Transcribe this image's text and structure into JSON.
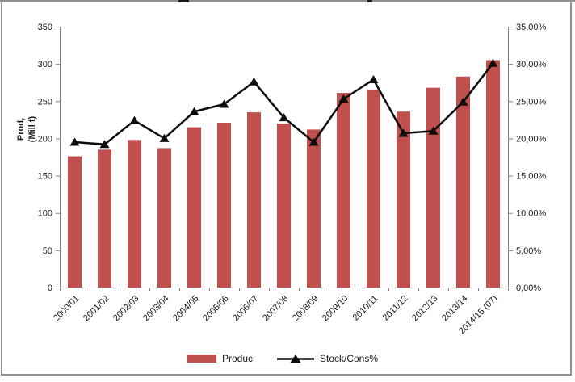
{
  "chart_data": {
    "type": "bar+line combo",
    "categories": [
      "2000/01",
      "2001/02",
      "2002/03",
      "2003/04",
      "2004/05",
      "2005/06",
      "2006/07",
      "2007/08",
      "2008/09",
      "2009/10",
      "2010/11",
      "2011/12",
      "2012/13",
      "2013/14",
      "2014/15 (07)"
    ],
    "series": [
      {
        "name": "Produc",
        "type": "bar",
        "axis": "left",
        "color": "#C0504D",
        "values": [
          176,
          185,
          198,
          187,
          215,
          221,
          235,
          220,
          212,
          261,
          265,
          236,
          268,
          283,
          305
        ]
      },
      {
        "name": "Stock/Cons%",
        "type": "line",
        "axis": "right",
        "color": "#0d0d0d",
        "marker": "triangle",
        "values": [
          19.5,
          19.2,
          22.4,
          20.0,
          23.6,
          24.6,
          27.6,
          22.8,
          19.5,
          25.3,
          27.9,
          20.7,
          21.0,
          24.9,
          30.1
        ]
      }
    ],
    "left_axis": {
      "min": 0,
      "max": 350,
      "step": 50,
      "title": "Prod, (Mill t)",
      "title_lines": [
        "Prod,",
        "(Mill t)"
      ],
      "tick_labels": [
        "0",
        "50",
        "100",
        "150",
        "200",
        "250",
        "300",
        "350"
      ]
    },
    "right_axis": {
      "min": 0,
      "max": 35,
      "step": 5,
      "tick_labels": [
        "0,00%",
        "5,00%",
        "10,00%",
        "15,00%",
        "20,00%",
        "25,00%",
        "30,00%",
        "35,00%"
      ]
    },
    "grid": false,
    "legend_position": "bottom"
  },
  "colors": {
    "bar": "#C0504D",
    "line": "#0d0d0d",
    "axis": "#7f7f7f",
    "text": "#1a1a1a",
    "frame": "#8e8e8e"
  }
}
